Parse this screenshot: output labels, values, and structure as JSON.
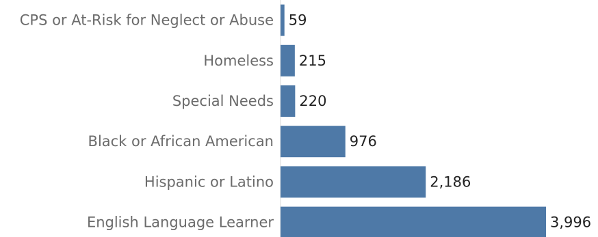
{
  "chart_data": {
    "type": "bar",
    "orientation": "horizontal",
    "categories": [
      "CPS or At-Risk for Neglect or Abuse",
      "Homeless",
      "Special Needs",
      "Black or African American",
      "Hispanic or Latino",
      "English Language Learner"
    ],
    "values": [
      59,
      215,
      220,
      976,
      2186,
      3996
    ],
    "value_labels": [
      "59",
      "215",
      "220",
      "976",
      "2,186",
      "3,996"
    ],
    "title": "",
    "xlabel": "",
    "ylabel": "",
    "xlim": [
      0,
      3996
    ],
    "grid": false,
    "legend": "none",
    "colors": {
      "bar": "#4e79a7",
      "axis": "#d9d9d9"
    }
  }
}
